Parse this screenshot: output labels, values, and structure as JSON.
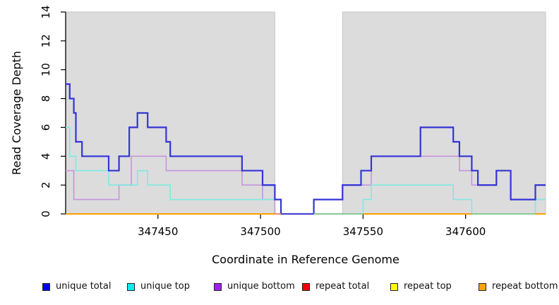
{
  "chart_data": {
    "type": "line",
    "subtype": "step-coverage-plot",
    "title": "",
    "xlabel": "Coordinate in Reference Genome",
    "ylabel": "Read Coverage Depth",
    "xlim": [
      347405,
      347639
    ],
    "ylim": [
      0,
      14
    ],
    "x_ticks": [
      347450,
      347500,
      347550,
      347600
    ],
    "y_ticks": [
      0,
      2,
      4,
      6,
      8,
      10,
      12,
      14
    ],
    "grid": false,
    "legend_position": "bottom",
    "shaded_regions": {
      "fill": "#dcdcdc",
      "border": "#c6c6c6",
      "ranges": [
        [
          347405,
          347507
        ],
        [
          347540,
          347639
        ]
      ]
    },
    "series": [
      {
        "name": "repeat total",
        "legend_color": "#ee0000",
        "line_color": "#ee0000",
        "width": 1.5,
        "steps": [
          [
            347405,
            0
          ],
          [
            347639,
            0
          ]
        ]
      },
      {
        "name": "repeat top",
        "legend_color": "#ffff00",
        "line_color": "#ffff00",
        "width": 1.5,
        "steps": [
          [
            347405,
            0
          ],
          [
            347639,
            0
          ]
        ]
      },
      {
        "name": "repeat bottom",
        "legend_color": "#ffa500",
        "line_color": "#ff9d00",
        "width": 2,
        "steps": [
          [
            347405,
            0
          ],
          [
            347639,
            0
          ]
        ]
      },
      {
        "name": "unique bottom",
        "legend_color": "#a020f0",
        "line_color": "#c694de",
        "width": 1.6,
        "steps": [
          [
            347405,
            3
          ],
          [
            347409,
            1
          ],
          [
            347431,
            2
          ],
          [
            347437,
            4
          ],
          [
            347454,
            3
          ],
          [
            347491,
            2
          ],
          [
            347501,
            1
          ],
          [
            347507,
            0
          ],
          [
            347526,
            1
          ],
          [
            347540,
            2
          ],
          [
            347554,
            4
          ],
          [
            347597,
            3
          ],
          [
            347603,
            2
          ],
          [
            347615,
            3
          ],
          [
            347622,
            1
          ],
          [
            347639,
            1
          ]
        ]
      },
      {
        "name": "unique top",
        "legend_color": "#00eeee",
        "line_color": "#7fe9e1",
        "width": 1.6,
        "steps": [
          [
            347405,
            6
          ],
          [
            347407,
            4
          ],
          [
            347410,
            3
          ],
          [
            347426,
            2
          ],
          [
            347440,
            3
          ],
          [
            347445,
            2
          ],
          [
            347456,
            1
          ],
          [
            347510,
            0
          ],
          [
            347550,
            1
          ],
          [
            347554,
            2
          ],
          [
            347594,
            1
          ],
          [
            347603,
            0
          ],
          [
            347634,
            1
          ],
          [
            347639,
            1
          ]
        ]
      },
      {
        "name": "unique total",
        "legend_color": "#0000ee",
        "line_color": "#3434d8",
        "width": 2.2,
        "steps": [
          [
            347405,
            9
          ],
          [
            347407,
            8
          ],
          [
            347409,
            7
          ],
          [
            347410,
            5
          ],
          [
            347413,
            4
          ],
          [
            347426,
            3
          ],
          [
            347431,
            4
          ],
          [
            347436,
            6
          ],
          [
            347440,
            7
          ],
          [
            347445,
            6
          ],
          [
            347454,
            5
          ],
          [
            347456,
            4
          ],
          [
            347491,
            3
          ],
          [
            347501,
            2
          ],
          [
            347507,
            1
          ],
          [
            347510,
            0
          ],
          [
            347526,
            1
          ],
          [
            347540,
            2
          ],
          [
            347549,
            3
          ],
          [
            347554,
            4
          ],
          [
            347578,
            6
          ],
          [
            347594,
            5
          ],
          [
            347597,
            4
          ],
          [
            347603,
            3
          ],
          [
            347606,
            2
          ],
          [
            347615,
            3
          ],
          [
            347622,
            1
          ],
          [
            347634,
            2
          ],
          [
            347639,
            2
          ]
        ]
      }
    ],
    "zero_line_segments": [
      {
        "from": 347405,
        "to": 347507,
        "color": "#ff9d00"
      },
      {
        "from": 347507,
        "to": 347510,
        "color": "#ee8876"
      },
      {
        "from": 347510,
        "to": 347526,
        "color": "#4a43cf"
      },
      {
        "from": 347526,
        "to": 347550,
        "color": "#86c893"
      },
      {
        "from": 347550,
        "to": 347603,
        "color": "#ff9d00"
      },
      {
        "from": 347603,
        "to": 347634,
        "color": "#86c893"
      },
      {
        "from": 347634,
        "to": 347639,
        "color": "#ff9d00"
      }
    ]
  },
  "legend": {
    "items": [
      {
        "label": "unique total",
        "color": "#0000ee"
      },
      {
        "label": "unique top",
        "color": "#00eeee"
      },
      {
        "label": "unique bottom",
        "color": "#a020f0"
      },
      {
        "label": "repeat total",
        "color": "#ee0000"
      },
      {
        "label": "repeat top",
        "color": "#ffff00"
      },
      {
        "label": "repeat bottom",
        "color": "#ffa500"
      }
    ]
  }
}
